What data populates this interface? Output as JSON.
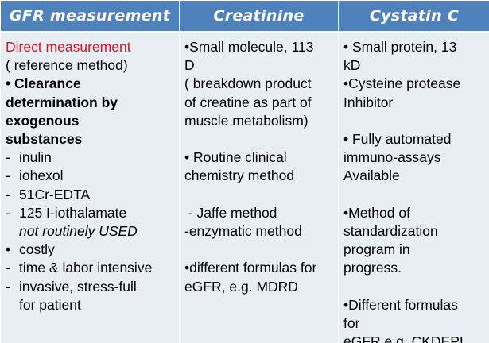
{
  "headers": [
    "GFR measurement",
    "Creatinine",
    "Cystatin C"
  ],
  "col1": {
    "direct": "Direct measurement",
    "reference": "( reference method)",
    "clearance_bullet": "•",
    "clearance_l1": "Clearance",
    "clearance_l2": "determination by",
    "clearance_l3": "exogenous",
    "clearance_l4": "substances",
    "items": [
      {
        "dash": "-",
        "text": "inulin"
      },
      {
        "dash": "-",
        "text": "iohexol"
      },
      {
        "dash": "-",
        "text": "51Cr-EDTA"
      },
      {
        "dash": "-",
        "text": "125 I-iothalamate"
      }
    ],
    "not_routinely": "not routinely USED",
    "costly": "costly",
    "time_labor": "time & labor intensive",
    "invasive": "invasive, stress-full",
    "for_patient": "for patient"
  },
  "col2": {
    "l1": "•Small molecule, 113",
    "l2": "D",
    "l3": "( breakdown product",
    "l4": "of creatine as part of",
    "l5": "muscle metabolism)",
    "l6": "• Routine clinical",
    "l7": "chemistry method",
    "l8": " - Jaffe method",
    "l9": "-enzymatic method",
    "l10": "•different formulas for",
    "l11": "eGFR, e.g. MDRD"
  },
  "col3": {
    "l1": "• Small protein, 13",
    "l2": "kD",
    "l3": "•Cysteine protease",
    "l4": "Inhibitor",
    "l5": "• Fully automated",
    "l6": "immuno-assays",
    "l7": "Available",
    "l8": "•Method of",
    "l9": "standardization",
    "l10": "program in",
    "l11": "progress.",
    "l12": "•Different formulas",
    "l13": "for",
    "l14": "eGFR e.g. CKDEPI"
  }
}
